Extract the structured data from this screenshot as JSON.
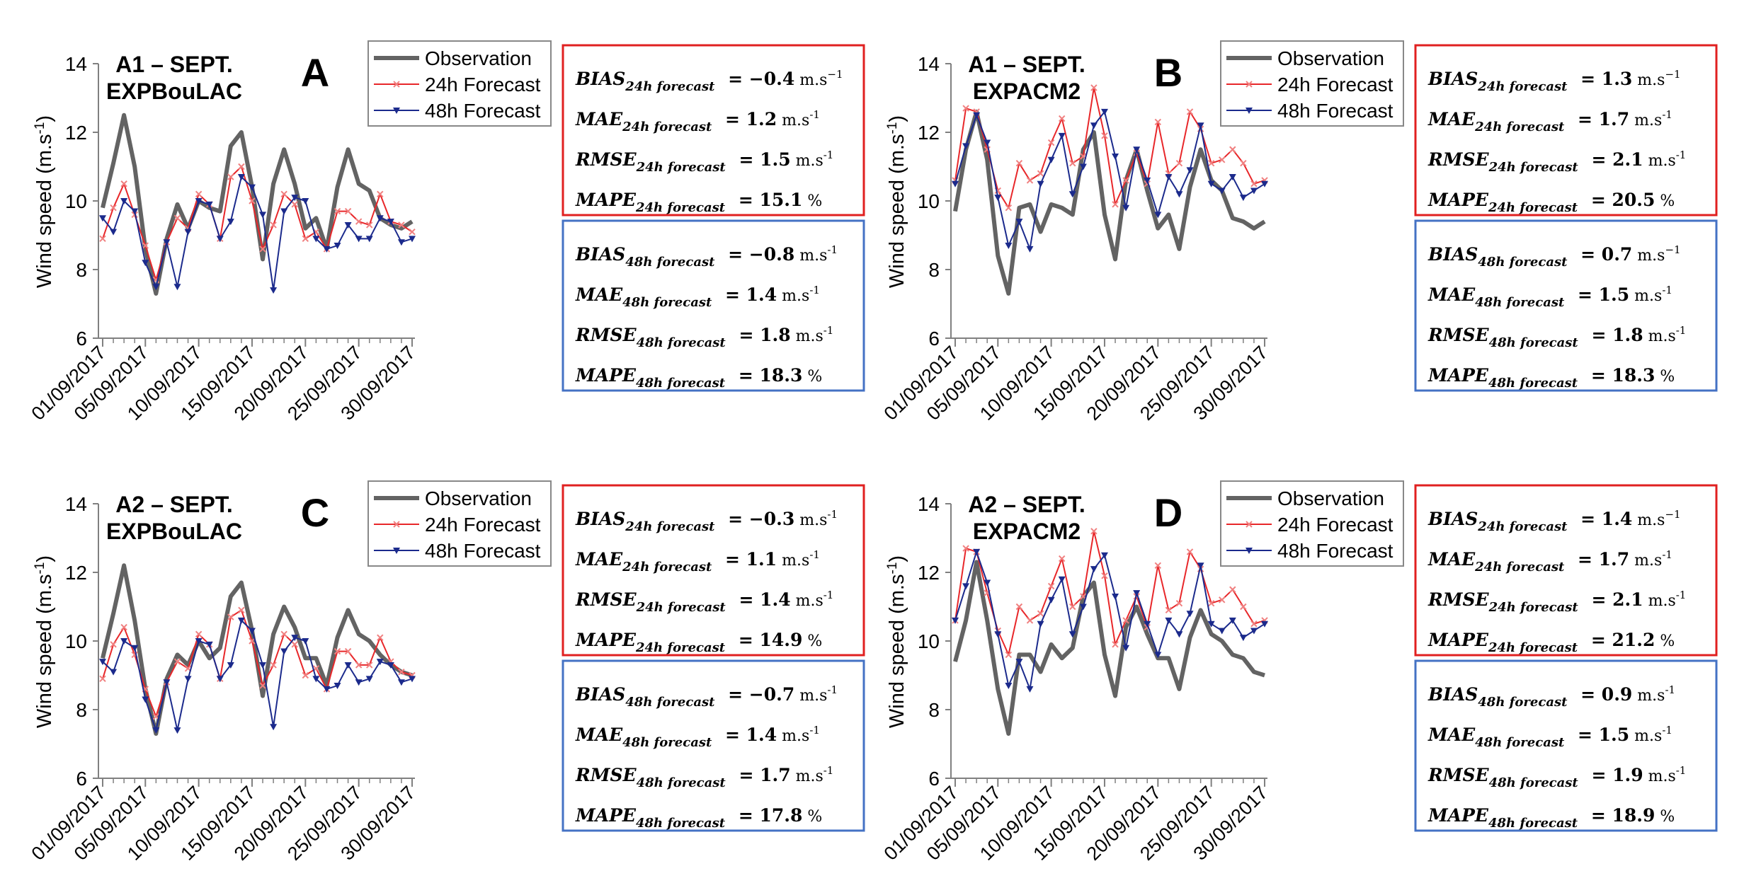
{
  "figure": {
    "ylabel": "Wind speed (m.s",
    "ylabel_sup": "-1",
    "ylabel_tail": ")",
    "legend": [
      "Observation",
      "24h Forecast",
      "48h Forecast"
    ],
    "colors": {
      "observation": "#636363",
      "f24": "#e8272a",
      "f48": "#1b2a8c",
      "box24": "#e02020",
      "box48": "#4472c4"
    }
  },
  "chart_data": [
    {
      "type": "line",
      "panel": "A",
      "title_lines": [
        "A1 – SEPT.",
        "EXPBouLAC"
      ],
      "ylabel": "Wind speed (m.s-1)",
      "ylim": [
        6,
        14
      ],
      "yticks": [
        "6",
        "8",
        "10",
        "12",
        "14"
      ],
      "xticklabels": [
        "01/09/2017",
        "05/09/2017",
        "10/09/2017",
        "15/09/2017",
        "20/09/2017",
        "25/09/2017",
        "30/09/2017"
      ],
      "xtick_days": [
        1,
        5,
        10,
        15,
        20,
        25,
        30
      ],
      "x_days": [
        1,
        2,
        3,
        4,
        5,
        6,
        7,
        8,
        9,
        10,
        11,
        12,
        13,
        14,
        15,
        16,
        17,
        18,
        19,
        20,
        21,
        22,
        23,
        24,
        25,
        26,
        27,
        28,
        29,
        30
      ],
      "series": [
        {
          "name": "Observation",
          "values": [
            9.8,
            11.1,
            12.5,
            11.0,
            8.6,
            7.3,
            8.9,
            9.9,
            9.2,
            10.0,
            9.8,
            9.7,
            11.6,
            12.0,
            10.4,
            8.3,
            10.5,
            11.5,
            10.5,
            9.2,
            9.5,
            8.6,
            10.4,
            11.5,
            10.5,
            10.3,
            9.5,
            9.3,
            9.2,
            9.4
          ]
        },
        {
          "name": "24h Forecast",
          "values": [
            8.9,
            9.8,
            10.5,
            9.6,
            8.7,
            7.7,
            8.8,
            9.5,
            9.2,
            10.2,
            9.9,
            8.9,
            10.7,
            11.0,
            10.0,
            8.6,
            9.3,
            10.2,
            9.9,
            8.9,
            9.1,
            8.6,
            9.7,
            9.7,
            9.4,
            9.3,
            10.2,
            9.4,
            9.3,
            9.1
          ]
        },
        {
          "name": "48h Forecast",
          "values": [
            9.5,
            9.1,
            10.0,
            9.7,
            8.2,
            7.5,
            8.8,
            7.5,
            9.1,
            10.0,
            9.9,
            8.9,
            9.4,
            10.7,
            10.4,
            9.6,
            7.4,
            9.7,
            10.1,
            10.0,
            8.9,
            8.6,
            8.7,
            9.3,
            8.9,
            8.9,
            9.5,
            9.4,
            8.8,
            8.9
          ]
        }
      ]
    },
    {
      "type": "line",
      "panel": "B",
      "title_lines": [
        "A1 – SEPT.",
        "EXPACM2"
      ],
      "ylabel": "Wind speed (m.s-1)",
      "ylim": [
        6,
        14
      ],
      "yticks": [
        "6",
        "8",
        "10",
        "12",
        "14"
      ],
      "xticklabels": [
        "01/09/2017",
        "05/09/2017",
        "10/09/2017",
        "15/09/2017",
        "20/09/2017",
        "25/09/2017",
        "30/09/2017"
      ],
      "xtick_days": [
        1,
        5,
        10,
        15,
        20,
        25,
        30
      ],
      "x_days": [
        1,
        2,
        3,
        4,
        5,
        6,
        7,
        8,
        9,
        10,
        11,
        12,
        13,
        14,
        15,
        16,
        17,
        18,
        19,
        20,
        21,
        22,
        23,
        24,
        25,
        26,
        27,
        28,
        29,
        30
      ],
      "series": [
        {
          "name": "Observation",
          "values": [
            9.7,
            11.5,
            12.6,
            11.2,
            8.4,
            7.3,
            9.8,
            9.9,
            9.1,
            9.9,
            9.8,
            9.6,
            11.5,
            12.0,
            9.6,
            8.3,
            10.6,
            11.5,
            10.3,
            9.2,
            9.6,
            8.6,
            10.4,
            11.5,
            10.6,
            10.3,
            9.5,
            9.4,
            9.2,
            9.4
          ]
        },
        {
          "name": "24h Forecast",
          "values": [
            10.6,
            12.7,
            12.6,
            11.5,
            10.3,
            9.8,
            11.1,
            10.6,
            10.8,
            11.7,
            12.4,
            11.1,
            11.3,
            13.3,
            11.9,
            9.9,
            10.6,
            11.4,
            10.5,
            12.3,
            10.8,
            11.1,
            12.6,
            12.1,
            11.1,
            11.2,
            11.5,
            11.1,
            10.5,
            10.6
          ]
        },
        {
          "name": "48h Forecast",
          "values": [
            10.5,
            11.6,
            12.5,
            11.7,
            10.1,
            8.7,
            9.4,
            8.6,
            10.5,
            11.2,
            11.9,
            10.2,
            11.0,
            12.2,
            12.6,
            11.3,
            9.8,
            11.5,
            10.6,
            9.6,
            10.7,
            10.2,
            10.9,
            12.2,
            10.5,
            10.3,
            10.7,
            10.1,
            10.3,
            10.5
          ]
        }
      ]
    },
    {
      "type": "line",
      "panel": "C",
      "title_lines": [
        "A2 – SEPT.",
        "EXPBouLAC"
      ],
      "ylabel": "Wind speed (m.s-1)",
      "ylim": [
        6,
        14
      ],
      "yticks": [
        "6",
        "8",
        "10",
        "12",
        "14"
      ],
      "xticklabels": [
        "01/09/2017",
        "05/09/2017",
        "10/09/2017",
        "15/09/2017",
        "20/09/2017",
        "25/09/2017",
        "30/09/2017"
      ],
      "xtick_days": [
        1,
        5,
        10,
        15,
        20,
        25,
        30
      ],
      "x_days": [
        1,
        2,
        3,
        4,
        5,
        6,
        7,
        8,
        9,
        10,
        11,
        12,
        13,
        14,
        15,
        16,
        17,
        18,
        19,
        20,
        21,
        22,
        23,
        24,
        25,
        26,
        27,
        28,
        29,
        30
      ],
      "series": [
        {
          "name": "Observation",
          "values": [
            9.5,
            10.8,
            12.2,
            10.6,
            8.6,
            7.3,
            8.9,
            9.6,
            9.3,
            10.0,
            9.5,
            9.8,
            11.3,
            11.7,
            10.3,
            8.4,
            10.2,
            11.0,
            10.4,
            9.5,
            9.5,
            8.7,
            10.1,
            10.9,
            10.2,
            10.0,
            9.6,
            9.3,
            9.1,
            9.0
          ]
        },
        {
          "name": "24h Forecast",
          "values": [
            8.9,
            9.9,
            10.4,
            9.6,
            8.6,
            7.8,
            8.8,
            9.4,
            9.2,
            10.2,
            9.9,
            8.9,
            10.7,
            10.9,
            10.0,
            8.7,
            9.3,
            10.2,
            9.9,
            9.0,
            9.2,
            8.6,
            9.7,
            9.7,
            9.3,
            9.3,
            10.1,
            9.4,
            9.1,
            9.0
          ]
        },
        {
          "name": "48h Forecast",
          "values": [
            9.4,
            9.1,
            10.0,
            9.8,
            8.3,
            7.4,
            8.8,
            7.4,
            8.9,
            10.0,
            9.9,
            8.9,
            9.3,
            10.6,
            10.3,
            9.3,
            7.5,
            9.7,
            10.1,
            10.0,
            8.9,
            8.6,
            8.7,
            9.3,
            8.8,
            8.9,
            9.4,
            9.3,
            8.8,
            8.9
          ]
        }
      ]
    },
    {
      "type": "line",
      "panel": "D",
      "title_lines": [
        "A2 – SEPT.",
        "EXPACM2"
      ],
      "ylabel": "Wind speed (m.s-1)",
      "ylim": [
        6,
        14
      ],
      "yticks": [
        "6",
        "8",
        "10",
        "12",
        "14"
      ],
      "xticklabels": [
        "01/09/2017",
        "05/09/2017",
        "10/09/2017",
        "15/09/2017",
        "20/09/2017",
        "25/09/2017",
        "30/09/2017"
      ],
      "xtick_days": [
        1,
        5,
        10,
        15,
        20,
        25,
        30
      ],
      "x_days": [
        1,
        2,
        3,
        4,
        5,
        6,
        7,
        8,
        9,
        10,
        11,
        12,
        13,
        14,
        15,
        16,
        17,
        18,
        19,
        20,
        21,
        22,
        23,
        24,
        25,
        26,
        27,
        28,
        29,
        30
      ],
      "series": [
        {
          "name": "Observation",
          "values": [
            9.4,
            10.6,
            12.3,
            10.6,
            8.6,
            7.3,
            9.6,
            9.6,
            9.1,
            9.9,
            9.5,
            9.8,
            11.3,
            11.7,
            9.6,
            8.4,
            10.4,
            11.0,
            10.2,
            9.5,
            9.5,
            8.6,
            10.1,
            10.9,
            10.2,
            10.0,
            9.6,
            9.5,
            9.1,
            9.0
          ]
        },
        {
          "name": "24h Forecast",
          "values": [
            10.6,
            12.7,
            12.6,
            11.4,
            10.3,
            9.6,
            11.0,
            10.6,
            10.8,
            11.6,
            12.4,
            11.0,
            11.3,
            13.2,
            11.9,
            9.9,
            10.6,
            11.3,
            10.4,
            12.2,
            10.9,
            11.1,
            12.6,
            12.1,
            11.1,
            11.2,
            11.5,
            11.0,
            10.5,
            10.6
          ]
        },
        {
          "name": "48h Forecast",
          "values": [
            10.6,
            11.6,
            12.6,
            11.7,
            10.2,
            8.7,
            9.4,
            8.6,
            10.5,
            11.2,
            11.8,
            10.2,
            11.0,
            12.1,
            12.5,
            11.3,
            9.8,
            11.4,
            10.5,
            9.6,
            10.6,
            10.2,
            10.8,
            12.2,
            10.5,
            10.3,
            10.6,
            10.1,
            10.3,
            10.5
          ]
        }
      ]
    }
  ],
  "stats": [
    {
      "box24": [
        {
          "metric": "BIAS",
          "sub": "24h forecast",
          "value": "= −0.4",
          "unit": " m.s",
          "sup": "−1",
          "tail": ""
        },
        {
          "metric": "MAE",
          "sub": "24h forecast",
          "value": "= 1.2",
          "unit": " m.s",
          "sup": "-1",
          "tail": ""
        },
        {
          "metric": "RMSE",
          "sub": "24h forecast",
          "value": "= 1.5",
          "unit": " m.s",
          "sup": "-1",
          "tail": ""
        },
        {
          "metric": "MAPE",
          "sub": "24h forecast",
          "value": "= 15.1",
          "unit": " %",
          "sup": "",
          "tail": ""
        }
      ],
      "box48": [
        {
          "metric": "BIAS",
          "sub": "48h forecast",
          "value": "= −0.8",
          "unit": " m.s",
          "sup": "-1",
          "tail": ""
        },
        {
          "metric": "MAE",
          "sub": "48h forecast",
          "value": "= 1.4",
          "unit": " m.s",
          "sup": "-1",
          "tail": ""
        },
        {
          "metric": "RMSE",
          "sub": "48h forecast",
          "value": "= 1.8",
          "unit": " m.s",
          "sup": "-1",
          "tail": ""
        },
        {
          "metric": "MAPE",
          "sub": "48h forecast",
          "value": "= 18.3",
          "unit": " %",
          "sup": "",
          "tail": ""
        }
      ]
    },
    {
      "box24": [
        {
          "metric": "BIAS",
          "sub": "24h forecast",
          "value": "= 1.3",
          "unit": " m.s",
          "sup": "−1",
          "tail": ""
        },
        {
          "metric": "MAE",
          "sub": "24h forecast",
          "value": "= 1.7",
          "unit": " m.s",
          "sup": "-1",
          "tail": ""
        },
        {
          "metric": "RMSE",
          "sub": "24h forecast",
          "value": "= 2.1",
          "unit": " m.s",
          "sup": "-1",
          "tail": ""
        },
        {
          "metric": "MAPE",
          "sub": "24h forecast",
          "value": "= 20.5",
          "unit": " %",
          "sup": "",
          "tail": ""
        }
      ],
      "box48": [
        {
          "metric": "BIAS",
          "sub": "48h forecast",
          "value": "= 0.7",
          "unit": " m.s",
          "sup": "−1",
          "tail": ""
        },
        {
          "metric": "MAE",
          "sub": "48h forecast",
          "value": "= 1.5",
          "unit": " m.s",
          "sup": "-1",
          "tail": ""
        },
        {
          "metric": "RMSE",
          "sub": "48h forecast",
          "value": "= 1.8",
          "unit": " m.s",
          "sup": "-1",
          "tail": ""
        },
        {
          "metric": "MAPE",
          "sub": "48h forecast",
          "value": "= 18.3",
          "unit": " %",
          "sup": "",
          "tail": ""
        }
      ]
    },
    {
      "box24": [
        {
          "metric": "BIAS",
          "sub": "24h forecast",
          "value": "= −0.3",
          "unit": " m.s",
          "sup": "-1",
          "tail": ""
        },
        {
          "metric": "MAE",
          "sub": "24h forecast",
          "value": "= 1.1",
          "unit": " m.s",
          "sup": "-1",
          "tail": ""
        },
        {
          "metric": "RMSE",
          "sub": "24h forecast",
          "value": "= 1.4",
          "unit": " m.s",
          "sup": "-1",
          "tail": ""
        },
        {
          "metric": "MAPE",
          "sub": "24h forecast",
          "value": "= 14.9",
          "unit": " %",
          "sup": "",
          "tail": ""
        }
      ],
      "box48": [
        {
          "metric": "BIAS",
          "sub": "48h forecast",
          "value": "= −0.7",
          "unit": " m.s",
          "sup": "-1",
          "tail": ""
        },
        {
          "metric": "MAE",
          "sub": "48h forecast",
          "value": "= 1.4",
          "unit": " m.s",
          "sup": "-1",
          "tail": ""
        },
        {
          "metric": "RMSE",
          "sub": "48h forecast",
          "value": "= 1.7",
          "unit": " m.s",
          "sup": "-1",
          "tail": ""
        },
        {
          "metric": "MAPE",
          "sub": "48h forecast",
          "value": "= 17.8",
          "unit": " %",
          "sup": "",
          "tail": ""
        }
      ]
    },
    {
      "box24": [
        {
          "metric": "BIAS",
          "sub": "24h forecast",
          "value": "= 1.4",
          "unit": " m.s",
          "sup": "−1",
          "tail": ""
        },
        {
          "metric": "MAE",
          "sub": "24h forecast",
          "value": "= 1.7",
          "unit": " m.s",
          "sup": "-1",
          "tail": ""
        },
        {
          "metric": "RMSE",
          "sub": "24h forecast",
          "value": "= 2.1",
          "unit": " m.s",
          "sup": "-1",
          "tail": ""
        },
        {
          "metric": "MAPE",
          "sub": "24h forecast",
          "value": "= 21.2",
          "unit": " %",
          "sup": "",
          "tail": ""
        }
      ],
      "box48": [
        {
          "metric": "BIAS",
          "sub": "48h forecast",
          "value": "= 0.9",
          "unit": " m.s",
          "sup": "-1",
          "tail": ""
        },
        {
          "metric": "MAE",
          "sub": "48h forecast",
          "value": "= 1.5",
          "unit": " m.s",
          "sup": "-1",
          "tail": ""
        },
        {
          "metric": "RMSE",
          "sub": "48h forecast",
          "value": "= 1.9",
          "unit": " m.s",
          "sup": "-1",
          "tail": ""
        },
        {
          "metric": "MAPE",
          "sub": "48h forecast",
          "value": "= 18.9",
          "unit": " %",
          "sup": "",
          "tail": ""
        }
      ]
    }
  ]
}
